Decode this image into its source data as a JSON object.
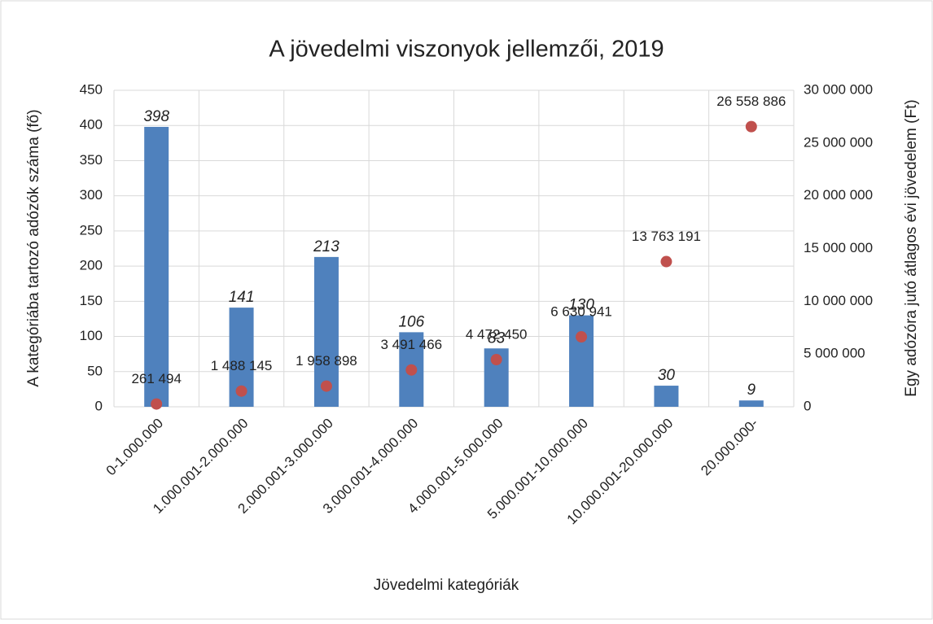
{
  "chart_data": {
    "type": "bar",
    "title": "A jövedelmi viszonyok jellemzői, 2019",
    "x_label": "Jövedelmi kategóriák",
    "y_label": "A kategóriába tartozó adózók száma (fő)",
    "y2_label": "Egy adózóra jutó átlagos évi jövedelem (Ft)",
    "categories": [
      "0-1.000.000",
      "1.000.001-2.000.000",
      "2.000.001-3.000.000",
      "3.000.001-4.000.000",
      "4.000.001-5.000.000",
      "5.000.001-10.000.000",
      "10.000.001-20.000.000",
      "20.000.000-"
    ],
    "series": [
      {
        "type": "bar",
        "color": "#4f81bd",
        "values": [
          398,
          141,
          213,
          106,
          83,
          130,
          30,
          9
        ]
      },
      {
        "type": "scatter",
        "axis": "y2",
        "color": "#c0504d",
        "values": [
          261494,
          1488145,
          1958898,
          3491466,
          4472450,
          6630941,
          13763191,
          26558886
        ],
        "value_labels": [
          "261 494",
          "1 488 145",
          "1 958 898",
          "3 491 466",
          "4 472 450",
          "6 630 941",
          "13 763 191",
          "26 558 886"
        ]
      }
    ],
    "ylim": [
      0,
      450
    ],
    "yticks": [
      0,
      50,
      100,
      150,
      200,
      250,
      300,
      350,
      400,
      450
    ],
    "y2lim": [
      0,
      30000000
    ],
    "y2ticks": [
      0,
      {
        "value": 5000000,
        "label": "5 000 000"
      },
      {
        "value": 10000000,
        "label": "10 000 000"
      },
      {
        "value": 15000000,
        "label": "15 000 000"
      },
      {
        "value": 20000000,
        "label": "20 000 000"
      },
      {
        "value": 25000000,
        "label": "25 000 000"
      },
      {
        "value": 30000000,
        "label": "30 000 000"
      }
    ],
    "grid": true
  }
}
